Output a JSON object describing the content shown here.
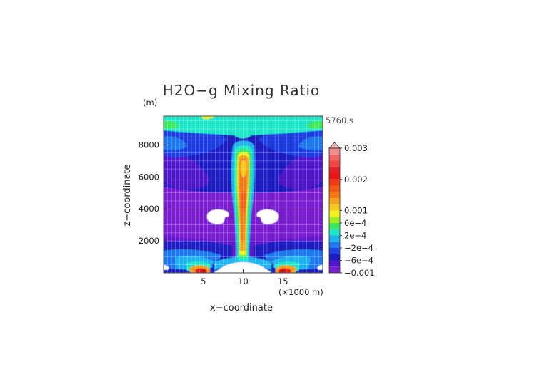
{
  "chart_data": {
    "type": "heatmap",
    "title": "H2O−g Mixing Ratio",
    "time_label": "5760 s",
    "xlabel": "x−coordinate",
    "ylabel": "z−coordinate",
    "x_unit": "(×1000 m)",
    "y_unit": "(m)",
    "xlim": [
      0,
      20
    ],
    "ylim": [
      0,
      9800
    ],
    "x_ticks": [
      5,
      10,
      15
    ],
    "x_tick_labels": [
      "5",
      "10",
      "15"
    ],
    "y_ticks": [
      2000,
      4000,
      6000,
      8000
    ],
    "y_tick_labels": [
      "2000",
      "4000",
      "6000",
      "8000"
    ],
    "grid": true,
    "colorbar": {
      "placement": "right",
      "levels": [
        -0.001,
        -0.0008,
        -0.0006,
        -0.0004,
        -0.0002,
        0,
        0.0002,
        0.0004,
        0.0006,
        0.0008,
        0.001,
        0.0012,
        0.0014,
        0.0016,
        0.0018,
        0.002,
        0.0022,
        0.0024,
        0.0026,
        0.0028,
        0.003
      ],
      "colors": [
        "#7a1fd0",
        "#5014cc",
        "#1c1cc4",
        "#1e3ee6",
        "#1e78f0",
        "#1eb4f0",
        "#1ee6c8",
        "#3ce85a",
        "#a0ee1e",
        "#f0f01e",
        "#f5c81e",
        "#f5a01e",
        "#f57814",
        "#f55a14",
        "#f03c14",
        "#ee1414",
        "#e61e28",
        "#f04646",
        "#f06464",
        "#f08c8c",
        "#f5b4b4"
      ],
      "tick_values": [
        -0.001,
        -0.0006,
        -0.0002,
        0.0002,
        0.0006,
        0.001,
        0.002,
        0.003
      ],
      "tick_labels": [
        "−0.001",
        "−6e−4",
        "−2e−4",
        "2e−4",
        "6e−4",
        "0.001",
        "0.002",
        "0.003"
      ]
    }
  }
}
